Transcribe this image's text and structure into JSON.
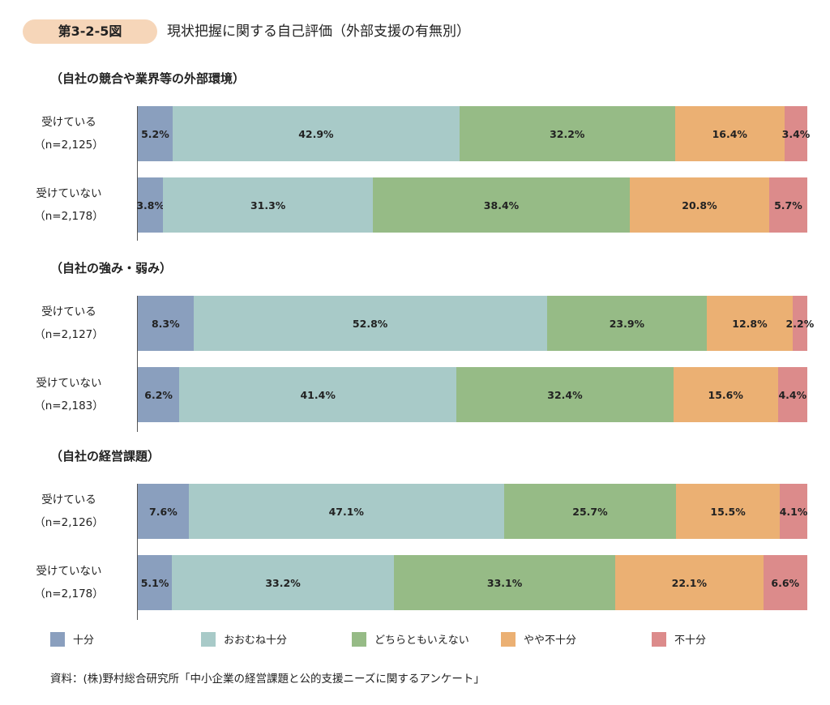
{
  "header": {
    "figure_no": "第3-2-5図",
    "title": "現状把握に関する自己評価（外部支援の有無別）"
  },
  "colors": [
    "#8a9fbe",
    "#a8cac8",
    "#96bb86",
    "#ebb073",
    "#dc8b8b"
  ],
  "chart_data": {
    "type": "bar",
    "stacked": true,
    "orientation": "horizontal",
    "unit": "%",
    "legend": [
      "十分",
      "おおむね十分",
      "どちらともいえない",
      "やや不十分",
      "不十分"
    ],
    "legend_position": "bottom",
    "groups": [
      {
        "title": "（自社の競合や業界等の外部環境）",
        "rows": [
          {
            "label": "受けている",
            "n": "（n=2,125）",
            "values": [
              5.2,
              42.9,
              32.2,
              16.4,
              3.4
            ]
          },
          {
            "label": "受けていない",
            "n": "（n=2,178）",
            "values": [
              3.8,
              31.3,
              38.4,
              20.8,
              5.7
            ]
          }
        ]
      },
      {
        "title": "（自社の強み・弱み）",
        "rows": [
          {
            "label": "受けている",
            "n": "（n=2,127）",
            "values": [
              8.3,
              52.8,
              23.9,
              12.8,
              2.2
            ]
          },
          {
            "label": "受けていない",
            "n": "（n=2,183）",
            "values": [
              6.2,
              41.4,
              32.4,
              15.6,
              4.4
            ]
          }
        ]
      },
      {
        "title": "（自社の経営課題）",
        "rows": [
          {
            "label": "受けている",
            "n": "（n=2,126）",
            "values": [
              7.6,
              47.1,
              25.7,
              15.5,
              4.1
            ]
          },
          {
            "label": "受けていない",
            "n": "（n=2,178）",
            "values": [
              5.1,
              33.2,
              33.1,
              22.1,
              6.6
            ]
          }
        ]
      }
    ]
  },
  "source": "資料：(株)野村総合研究所「中小企業の経営課題と公的支援ニーズに関するアンケート」"
}
